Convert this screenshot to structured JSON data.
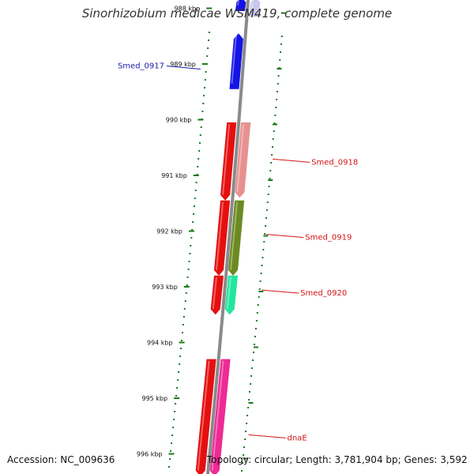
{
  "header": {
    "title": "Sinorhizobium medicae WSM419, complete genome"
  },
  "footer": {
    "accession": "Accession: NC_009636",
    "topology": "Topology: circular; Length: 3,781,904 bp; Genes: 3,592"
  },
  "colors": {
    "backbone": "#8a8a8a",
    "tick": "#1a7a1a",
    "label_blue": "#1a1aa8",
    "label_red": "#d41414"
  },
  "scale": {
    "kbp_labels": [
      "988 kbp",
      "989 kbp",
      "990 kbp",
      "991 kbp",
      "992 kbp",
      "993 kbp",
      "994 kbp",
      "995 kbp",
      "996 kbp"
    ]
  },
  "features": [
    {
      "id": "f0",
      "kbp_start": 987.7,
      "kbp_end": 988.15,
      "strand": "-",
      "lane": 1,
      "color": "#c8c8ee",
      "label": ""
    },
    {
      "id": "f1",
      "kbp_start": 987.7,
      "kbp_end": 988.05,
      "strand": "-",
      "lane": 0,
      "color": "#1414e6",
      "label": ""
    },
    {
      "id": "f2",
      "kbp_start": 988.45,
      "kbp_end": 989.45,
      "strand": "-",
      "lane": 0,
      "color": "#1414e6",
      "label": "Smed_0917"
    },
    {
      "id": "f3",
      "kbp_start": 990.05,
      "kbp_end": 991.45,
      "strand": "+",
      "lane": 0,
      "color": "#e60f0f",
      "label": ""
    },
    {
      "id": "f4",
      "kbp_start": 990.05,
      "kbp_end": 991.4,
      "strand": "+",
      "lane": 1,
      "color": "#e89090",
      "label": "Smed_0918"
    },
    {
      "id": "f5",
      "kbp_start": 991.45,
      "kbp_end": 992.8,
      "strand": "+",
      "lane": 0,
      "color": "#e60f0f",
      "label": ""
    },
    {
      "id": "f6",
      "kbp_start": 991.45,
      "kbp_end": 992.8,
      "strand": "+",
      "lane": 1,
      "color": "#6b8a22",
      "label": "Smed_0919"
    },
    {
      "id": "f7",
      "kbp_start": 992.8,
      "kbp_end": 993.5,
      "strand": "+",
      "lane": 0,
      "color": "#e60f0f",
      "label": ""
    },
    {
      "id": "f8",
      "kbp_start": 992.8,
      "kbp_end": 993.5,
      "strand": "+",
      "lane": 1,
      "color": "#22e6a0",
      "label": "Smed_0920"
    },
    {
      "id": "f9",
      "kbp_start": 994.3,
      "kbp_end": 996.4,
      "strand": "+",
      "lane": 0,
      "color": "#e60f0f",
      "label": ""
    },
    {
      "id": "f10",
      "kbp_start": 994.3,
      "kbp_end": 996.4,
      "strand": "+",
      "lane": 1,
      "color": "#ee2a96",
      "label": "dnaE"
    }
  ],
  "labels": [
    {
      "text": "Smed_0917",
      "kbp": 989.05,
      "side": "left",
      "color": "#1a1aa8"
    },
    {
      "text": "Smed_0918",
      "kbp": 990.75,
      "side": "right",
      "color": "#d41414"
    },
    {
      "text": "Smed_0919",
      "kbp": 992.1,
      "side": "right",
      "color": "#d41414"
    },
    {
      "text": "Smed_0920",
      "kbp": 993.1,
      "side": "right",
      "color": "#d41414"
    },
    {
      "text": "dnaE",
      "kbp": 995.7,
      "side": "right",
      "color": "#d41414"
    }
  ]
}
